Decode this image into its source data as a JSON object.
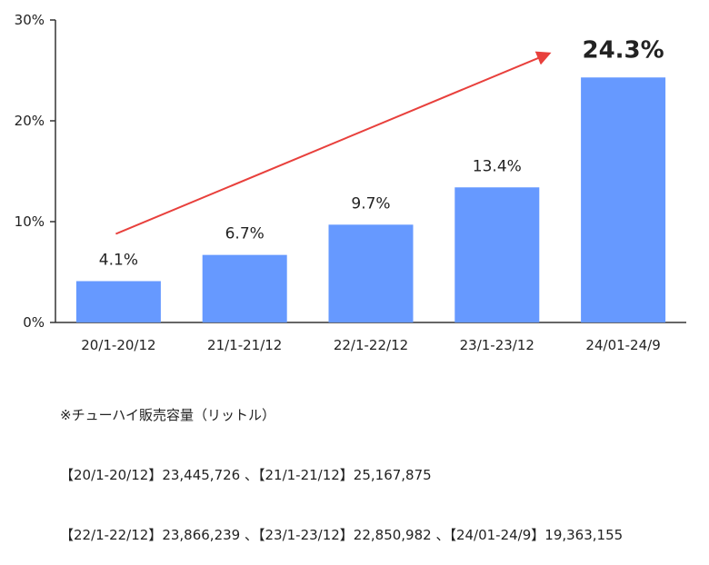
{
  "chart_data": {
    "type": "bar",
    "categories": [
      "20/1-20/12",
      "21/1-21/12",
      "22/1-22/12",
      "23/1-23/12",
      "24/01-24/9"
    ],
    "values": [
      4.1,
      6.7,
      9.7,
      13.4,
      24.3
    ],
    "value_labels": [
      "4.1%",
      "6.7%",
      "9.7%",
      "13.4%",
      "24.3%"
    ],
    "y_ticks": [
      {
        "value": 0,
        "label": "0%"
      },
      {
        "value": 10,
        "label": "10%"
      },
      {
        "value": 20,
        "label": "20%"
      },
      {
        "value": 30,
        "label": "30%"
      }
    ],
    "ylim": [
      0,
      30
    ],
    "grid": false,
    "bar_color": "#6699ff",
    "highlight_label_color": "#6699ff",
    "trend_arrow_color": "#e8403c"
  },
  "notes": {
    "title": "※チューハイ販売容量（リットル）",
    "line1": "【20/1-20/12】23,445,726 、【21/1-21/12】25,167,875",
    "line2": "【22/1-22/12】23,866,239 、【23/1-23/12】22,850,982 、【24/01-24/9】19,363,155"
  }
}
